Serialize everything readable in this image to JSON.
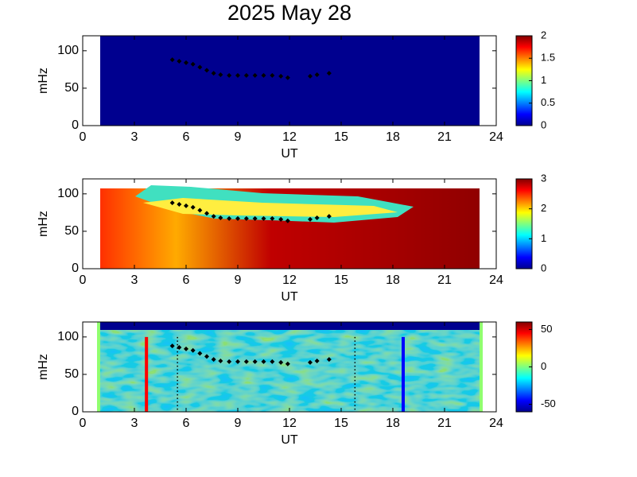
{
  "chart_data": [
    {
      "type": "spectrogram",
      "title": "2025 May 28",
      "xlabel": "UT",
      "ylabel": "mHz",
      "xlim": [
        0,
        24
      ],
      "xticks": [
        0,
        3,
        6,
        9,
        12,
        15,
        18,
        21,
        24
      ],
      "ylim": [
        0,
        120
      ],
      "yticks": [
        0,
        50,
        100
      ],
      "clim": [
        0,
        2
      ],
      "cticks": [
        0,
        0.5,
        1,
        1.5,
        2
      ],
      "track": {
        "x": [
          5.2,
          5.6,
          6.0,
          6.4,
          6.8,
          7.2,
          7.6,
          8.0,
          8.5,
          9.0,
          9.5,
          10.0,
          10.5,
          11.0,
          11.5,
          11.9,
          13.2,
          13.6,
          14.3
        ],
        "y": [
          88,
          86,
          84,
          82,
          78,
          74,
          70,
          68,
          67,
          67,
          67,
          67,
          67,
          67,
          66,
          64,
          66,
          68,
          70
        ]
      }
    },
    {
      "type": "spectrogram",
      "xlabel": "UT",
      "ylabel": "mHz",
      "xlim": [
        0,
        24
      ],
      "xticks": [
        0,
        3,
        6,
        9,
        12,
        15,
        18,
        21,
        24
      ],
      "ylim": [
        0,
        120
      ],
      "yticks": [
        0,
        50,
        100
      ],
      "clim": [
        0,
        3
      ],
      "cticks": [
        0,
        1,
        2,
        3
      ],
      "track": {
        "x": [
          5.2,
          5.6,
          6.0,
          6.4,
          6.8,
          7.2,
          7.6,
          8.0,
          8.5,
          9.0,
          9.5,
          10.0,
          10.5,
          11.0,
          11.5,
          11.9,
          13.2,
          13.6,
          14.3
        ],
        "y": [
          88,
          86,
          84,
          82,
          78,
          74,
          70,
          68,
          67,
          67,
          67,
          67,
          67,
          67,
          66,
          64,
          66,
          68,
          70
        ]
      }
    },
    {
      "type": "spectrogram",
      "xlabel": "UT",
      "ylabel": "mHz",
      "xlim": [
        0,
        24
      ],
      "xticks": [
        0,
        3,
        6,
        9,
        12,
        15,
        18,
        21,
        24
      ],
      "ylim": [
        0,
        120
      ],
      "yticks": [
        0,
        50,
        100
      ],
      "clim": [
        -60,
        60
      ],
      "cticks": [
        -50,
        0,
        50
      ],
      "track": {
        "x": [
          5.2,
          5.6,
          6.0,
          6.4,
          6.8,
          7.2,
          7.6,
          8.0,
          8.5,
          9.0,
          9.5,
          10.0,
          10.5,
          11.0,
          11.5,
          11.9,
          13.2,
          13.6,
          14.3
        ],
        "y": [
          88,
          86,
          84,
          82,
          78,
          74,
          70,
          68,
          67,
          67,
          67,
          67,
          67,
          67,
          66,
          64,
          66,
          68,
          70
        ]
      },
      "vlines": [
        {
          "x": 3.7,
          "color": "#ff0000",
          "style": "solid"
        },
        {
          "x": 5.5,
          "color": "#000000",
          "style": "dotted"
        },
        {
          "x": 15.8,
          "color": "#000000",
          "style": "dotted"
        },
        {
          "x": 18.6,
          "color": "#0000ff",
          "style": "solid"
        }
      ]
    }
  ]
}
